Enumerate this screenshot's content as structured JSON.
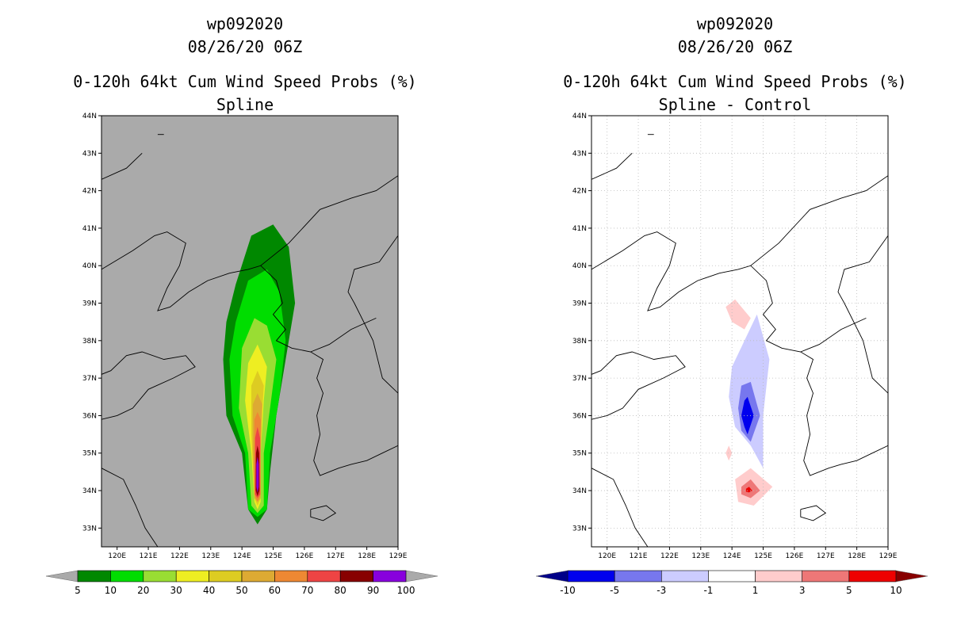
{
  "chart_data": [
    {
      "type": "heatmap",
      "storm": "wp092020",
      "date": "08/26/20 06Z",
      "title": "0-120h 64kt Cum Wind Speed Probs (%)",
      "subtitle": "Spline",
      "background": "#aaaaaa",
      "grid": false,
      "xlim": [
        119.5,
        129
      ],
      "ylim": [
        32.5,
        44
      ],
      "xticks": [
        "120E",
        "121E",
        "122E",
        "123E",
        "124E",
        "125E",
        "126E",
        "127E",
        "128E",
        "129E"
      ],
      "yticks": [
        "33N",
        "34N",
        "35N",
        "36N",
        "37N",
        "38N",
        "39N",
        "40N",
        "41N",
        "42N",
        "43N",
        "44N"
      ],
      "colorbar": {
        "labels": [
          "5",
          "10",
          "20",
          "30",
          "40",
          "50",
          "60",
          "70",
          "80",
          "90",
          "100"
        ],
        "colors": [
          "#008800",
          "#00dd00",
          "#99dd33",
          "#eeee22",
          "#ddcc22",
          "#ddaa33",
          "#ee8833",
          "#ee4444",
          "#880000",
          "#8800dd"
        ],
        "under": "#aaaaaa",
        "over": "#aaaaaa"
      },
      "contours": [
        {
          "level": 5,
          "color": "#008800",
          "points": [
            [
              123.8,
              39.5
            ],
            [
              124.3,
              40.8
            ],
            [
              125.0,
              41.1
            ],
            [
              125.5,
              40.5
            ],
            [
              125.7,
              39.0
            ],
            [
              125.4,
              37.5
            ],
            [
              125.1,
              36.0
            ],
            [
              124.9,
              34.5
            ],
            [
              124.8,
              33.5
            ],
            [
              124.5,
              33.1
            ],
            [
              124.2,
              33.5
            ],
            [
              124.0,
              35.0
            ],
            [
              123.5,
              36.0
            ],
            [
              123.4,
              37.5
            ],
            [
              123.5,
              38.5
            ]
          ]
        },
        {
          "level": 10,
          "color": "#00dd00",
          "points": [
            [
              123.8,
              38.5
            ],
            [
              124.2,
              39.6
            ],
            [
              124.8,
              39.9
            ],
            [
              125.2,
              39.3
            ],
            [
              125.4,
              38.0
            ],
            [
              125.2,
              36.5
            ],
            [
              124.9,
              35.0
            ],
            [
              124.8,
              33.5
            ],
            [
              124.5,
              33.3
            ],
            [
              124.2,
              33.5
            ],
            [
              124.1,
              35.0
            ],
            [
              123.7,
              36.0
            ],
            [
              123.6,
              37.5
            ]
          ]
        },
        {
          "level": 20,
          "color": "#99dd33",
          "points": [
            [
              124.0,
              37.8
            ],
            [
              124.4,
              38.6
            ],
            [
              124.8,
              38.4
            ],
            [
              125.1,
              37.5
            ],
            [
              124.9,
              36.2
            ],
            [
              124.7,
              35.0
            ],
            [
              124.7,
              33.6
            ],
            [
              124.5,
              33.4
            ],
            [
              124.3,
              33.6
            ],
            [
              124.2,
              35.0
            ],
            [
              123.9,
              36.2
            ]
          ]
        },
        {
          "level": 30,
          "color": "#eeee22",
          "points": [
            [
              124.2,
              37.4
            ],
            [
              124.5,
              37.9
            ],
            [
              124.8,
              37.3
            ],
            [
              124.7,
              36.4
            ],
            [
              124.6,
              35.0
            ],
            [
              124.6,
              33.7
            ],
            [
              124.5,
              33.5
            ],
            [
              124.4,
              33.7
            ],
            [
              124.3,
              35.0
            ],
            [
              124.1,
              36.4
            ]
          ]
        },
        {
          "level": 40,
          "color": "#ddcc22",
          "points": [
            [
              124.3,
              36.8
            ],
            [
              124.5,
              37.2
            ],
            [
              124.7,
              36.8
            ],
            [
              124.6,
              35.5
            ],
            [
              124.6,
              33.8
            ],
            [
              124.5,
              33.6
            ],
            [
              124.4,
              33.8
            ],
            [
              124.3,
              35.5
            ]
          ]
        },
        {
          "level": 50,
          "color": "#ddaa33",
          "points": [
            [
              124.35,
              36.3
            ],
            [
              124.5,
              36.6
            ],
            [
              124.65,
              36.3
            ],
            [
              124.6,
              35.0
            ],
            [
              124.6,
              33.8
            ],
            [
              124.5,
              33.7
            ],
            [
              124.4,
              33.8
            ],
            [
              124.35,
              35.0
            ]
          ]
        },
        {
          "level": 60,
          "color": "#ee8833",
          "points": [
            [
              124.4,
              35.9
            ],
            [
              124.5,
              36.1
            ],
            [
              124.6,
              35.9
            ],
            [
              124.6,
              33.9
            ],
            [
              124.5,
              33.7
            ],
            [
              124.4,
              33.9
            ]
          ]
        },
        {
          "level": 70,
          "color": "#ee4444",
          "points": [
            [
              124.42,
              35.4
            ],
            [
              124.5,
              35.7
            ],
            [
              124.58,
              35.4
            ],
            [
              124.58,
              33.9
            ],
            [
              124.5,
              33.8
            ],
            [
              124.42,
              33.9
            ]
          ]
        },
        {
          "level": 80,
          "color": "#880000",
          "points": [
            [
              124.45,
              35.0
            ],
            [
              124.5,
              35.2
            ],
            [
              124.55,
              35.0
            ],
            [
              124.56,
              34.0
            ],
            [
              124.5,
              33.85
            ],
            [
              124.44,
              34.0
            ]
          ]
        },
        {
          "level": 90,
          "color": "#8800dd",
          "points": [
            [
              124.46,
              34.7
            ],
            [
              124.5,
              34.9
            ],
            [
              124.54,
              34.7
            ],
            [
              124.54,
              34.1
            ],
            [
              124.5,
              33.95
            ],
            [
              124.46,
              34.1
            ]
          ]
        }
      ]
    },
    {
      "type": "heatmap",
      "storm": "wp092020",
      "date": "08/26/20 06Z",
      "title": "0-120h 64kt Cum Wind Speed Probs (%)",
      "subtitle": "Spline - Control",
      "background": "#ffffff",
      "grid": true,
      "xlim": [
        119.5,
        129
      ],
      "ylim": [
        32.5,
        44
      ],
      "xticks": [
        "120E",
        "121E",
        "122E",
        "123E",
        "124E",
        "125E",
        "126E",
        "127E",
        "128E",
        "129E"
      ],
      "yticks": [
        "33N",
        "34N",
        "35N",
        "36N",
        "37N",
        "38N",
        "39N",
        "40N",
        "41N",
        "42N",
        "43N",
        "44N"
      ],
      "colorbar": {
        "labels": [
          "-10",
          "-5",
          "-3",
          "-1",
          "1",
          "3",
          "5",
          "10"
        ],
        "colors": [
          "#0000ee",
          "#7777ee",
          "#ccccff",
          "#ffffff",
          "#ffcccc",
          "#ee7777",
          "#ee0000"
        ],
        "under": "#000088",
        "over": "#880000"
      },
      "contours": [
        {
          "level": -1,
          "color": "#ccccff",
          "points": [
            [
              124.0,
              37.3
            ],
            [
              124.8,
              38.7
            ],
            [
              125.2,
              37.5
            ],
            [
              125.0,
              36.0
            ],
            [
              125.0,
              34.6
            ],
            [
              124.6,
              35.2
            ],
            [
              124.1,
              35.7
            ],
            [
              123.9,
              36.5
            ]
          ]
        },
        {
          "level": -3,
          "color": "#7777ee",
          "points": [
            [
              124.3,
              36.8
            ],
            [
              124.6,
              36.9
            ],
            [
              124.9,
              36.0
            ],
            [
              124.6,
              35.3
            ],
            [
              124.3,
              35.6
            ],
            [
              124.2,
              36.2
            ]
          ]
        },
        {
          "level": -5,
          "color": "#0000ee",
          "points": [
            [
              124.4,
              36.4
            ],
            [
              124.5,
              36.5
            ],
            [
              124.7,
              36.0
            ],
            [
              124.5,
              35.5
            ],
            [
              124.4,
              35.7
            ],
            [
              124.3,
              36.0
            ]
          ]
        },
        {
          "level": 1,
          "color": "#ffcccc",
          "points": [
            [
              123.8,
              38.9
            ],
            [
              124.1,
              39.1
            ],
            [
              124.6,
              38.6
            ],
            [
              124.4,
              38.3
            ],
            [
              124.0,
              38.5
            ]
          ]
        },
        {
          "level": 1,
          "color": "#ffcccc",
          "points": [
            [
              123.9,
              35.2
            ],
            [
              124.0,
              35.0
            ],
            [
              123.9,
              34.8
            ],
            [
              123.8,
              35.0
            ]
          ]
        },
        {
          "level": 1,
          "color": "#ffcccc",
          "points": [
            [
              124.1,
              34.3
            ],
            [
              124.6,
              34.6
            ],
            [
              125.3,
              34.1
            ],
            [
              124.7,
              33.6
            ],
            [
              124.2,
              33.7
            ]
          ]
        },
        {
          "level": 3,
          "color": "#ee7777",
          "points": [
            [
              124.3,
              34.1
            ],
            [
              124.6,
              34.3
            ],
            [
              124.9,
              34.0
            ],
            [
              124.6,
              33.8
            ],
            [
              124.3,
              33.9
            ]
          ]
        },
        {
          "level": 5,
          "color": "#ee0000",
          "points": [
            [
              124.45,
              34.05
            ],
            [
              124.55,
              34.1
            ],
            [
              124.65,
              34.0
            ],
            [
              124.55,
              33.95
            ],
            [
              124.45,
              33.97
            ]
          ]
        }
      ]
    }
  ]
}
